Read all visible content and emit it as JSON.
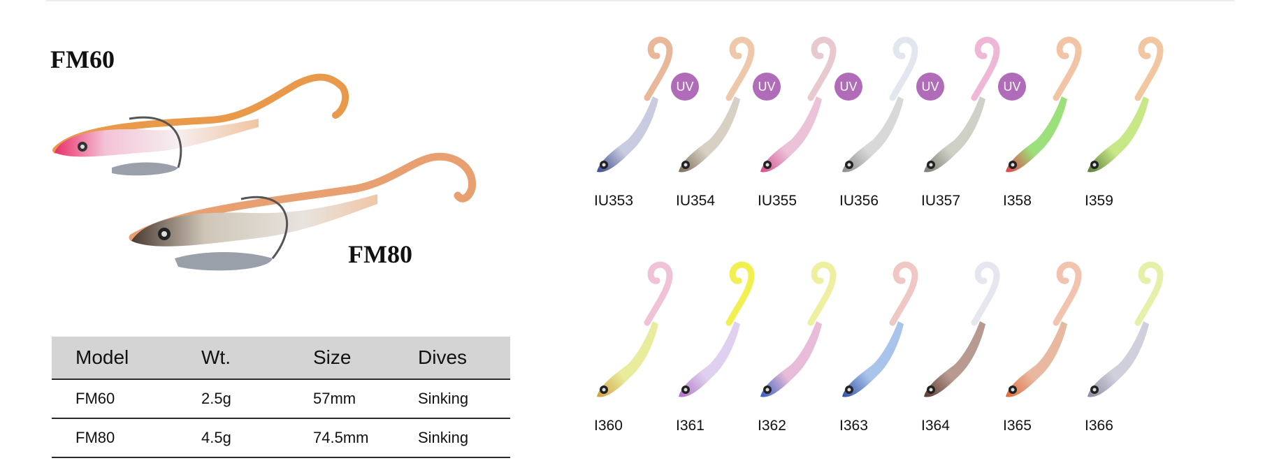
{
  "products": {
    "fm60_title": "FM60",
    "fm80_title": "FM80"
  },
  "spec_table": {
    "headers": [
      "Model",
      "Wt.",
      "Size",
      "Dives"
    ],
    "rows": [
      [
        "FM60",
        "2.5g",
        "57mm",
        "Sinking"
      ],
      [
        "FM80",
        "4.5g",
        "74.5mm",
        "Sinking"
      ]
    ]
  },
  "uv_badge": "UV",
  "colors_row1": [
    {
      "code": "IU353",
      "uv": true,
      "head": "#3a4a8c",
      "body": "#c9cbe0",
      "tail": "#e9b89a"
    },
    {
      "code": "IU354",
      "uv": true,
      "head": "#7a6a58",
      "body": "#d8d0c4",
      "tail": "#efc7aa"
    },
    {
      "code": "IU355",
      "uv": true,
      "head": "#d44a8c",
      "body": "#ecc2d8",
      "tail": "#e7c9cf"
    },
    {
      "code": "IU356",
      "uv": true,
      "head": "#8a8a8a",
      "body": "#d8d8d8",
      "tail": "#e2e6ee"
    },
    {
      "code": "IU357",
      "uv": true,
      "head": "#7a7a72",
      "body": "#cfd0c6",
      "tail": "#efb7d6"
    },
    {
      "code": "I358",
      "uv": false,
      "head": "#e0404a",
      "body": "#9be07a",
      "tail": "#f2c4a6"
    },
    {
      "code": "I359",
      "uv": false,
      "head": "#5a7a3a",
      "body": "#c8e888",
      "tail": "#f2c6a0"
    }
  ],
  "colors_row2": [
    {
      "code": "I360",
      "uv": false,
      "head": "#d0a040",
      "body": "#e9ec9c",
      "tail": "#efc2d8"
    },
    {
      "code": "I361",
      "uv": false,
      "head": "#b070c8",
      "body": "#ded0ee",
      "tail": "#f2f050"
    },
    {
      "code": "I362",
      "uv": false,
      "head": "#3060c0",
      "body": "#e8bcd8",
      "tail": "#eef0a0"
    },
    {
      "code": "I363",
      "uv": false,
      "head": "#3050a8",
      "body": "#a8c4ea",
      "tail": "#efc7c4"
    },
    {
      "code": "I364",
      "uv": false,
      "head": "#5a3a30",
      "body": "#b89a90",
      "tail": "#e6e6ee"
    },
    {
      "code": "I365",
      "uv": false,
      "head": "#e06a3a",
      "body": "#e8b8a0",
      "tail": "#f2c4b0"
    },
    {
      "code": "I366",
      "uv": false,
      "head": "#8a8aa0",
      "body": "#d0d0dc",
      "tail": "#e6f0a8"
    }
  ]
}
